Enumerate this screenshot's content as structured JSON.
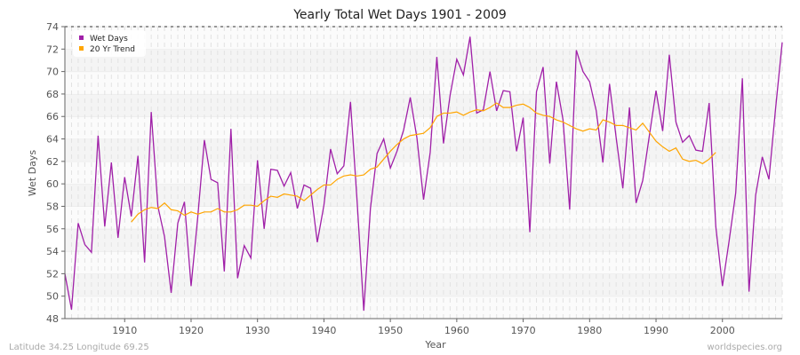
{
  "chart_data": {
    "type": "line",
    "title": "Yearly Total Wet Days 1901 - 2009",
    "xlabel": "Year",
    "ylabel": "Wet Days",
    "xlim": [
      1901,
      2009
    ],
    "ylim": [
      48,
      74
    ],
    "xticks": [
      1910,
      1920,
      1930,
      1940,
      1950,
      1960,
      1970,
      1980,
      1990,
      2000
    ],
    "yticks": [
      48,
      50,
      52,
      54,
      56,
      58,
      60,
      62,
      64,
      66,
      68,
      70,
      72,
      74
    ],
    "grid": true,
    "legend_placement": "top-left",
    "series": [
      {
        "name": "Wet Days",
        "color": "#a020a8",
        "x_start": 1901,
        "values": [
          52.0,
          48.8,
          56.5,
          54.6,
          53.9,
          64.3,
          56.2,
          61.9,
          55.2,
          60.6,
          57.1,
          62.5,
          53.0,
          66.4,
          58.0,
          55.3,
          50.3,
          56.5,
          58.4,
          50.9,
          57.0,
          63.9,
          60.4,
          60.1,
          52.2,
          64.9,
          51.6,
          54.5,
          53.4,
          62.1,
          56.0,
          61.3,
          61.2,
          59.8,
          61.0,
          57.8,
          59.9,
          59.6,
          54.8,
          58.1,
          63.1,
          60.9,
          61.6,
          67.3,
          58.4,
          48.7,
          57.8,
          62.7,
          64.0,
          61.4,
          62.9,
          64.8,
          67.7,
          64.1,
          58.6,
          62.8,
          71.3,
          63.6,
          67.9,
          71.1,
          69.7,
          73.1,
          66.3,
          66.6,
          70.0,
          66.5,
          68.3,
          68.2,
          62.9,
          65.9,
          55.7,
          68.2,
          70.4,
          61.8,
          69.1,
          65.7,
          57.7,
          71.9,
          70.0,
          69.1,
          66.5,
          61.9,
          68.9,
          64.1,
          59.6,
          66.8,
          58.3,
          60.3,
          64.3,
          68.3,
          64.7,
          71.5,
          65.5,
          63.7,
          64.3,
          63.0,
          62.9,
          67.2,
          56.2,
          50.9,
          54.9,
          59.2,
          69.4,
          50.4,
          59.0,
          62.4,
          60.4,
          66.7,
          72.6
        ]
      },
      {
        "name": "20 Yr Trend",
        "color": "#ffa500",
        "x_start": 1911,
        "values": [
          56.6,
          57.3,
          57.7,
          57.9,
          57.8,
          58.3,
          57.7,
          57.6,
          57.2,
          57.5,
          57.3,
          57.5,
          57.5,
          57.8,
          57.5,
          57.5,
          57.7,
          58.1,
          58.1,
          58.0,
          58.5,
          58.9,
          58.8,
          59.1,
          59.0,
          58.9,
          58.5,
          59.0,
          59.5,
          59.9,
          59.9,
          60.4,
          60.7,
          60.8,
          60.7,
          60.8,
          61.3,
          61.5,
          62.2,
          62.9,
          63.5,
          64.0,
          64.3,
          64.4,
          64.5,
          65.0,
          66.0,
          66.3,
          66.3,
          66.4,
          66.1,
          66.4,
          66.6,
          66.5,
          66.8,
          67.2,
          66.8,
          66.8,
          67.0,
          67.1,
          66.8,
          66.3,
          66.1,
          66.0,
          65.7,
          65.5,
          65.2,
          64.9,
          64.7,
          64.9,
          64.8,
          65.7,
          65.5,
          65.2,
          65.2,
          65.0,
          64.8,
          65.4,
          64.6,
          63.8,
          63.3,
          62.9,
          63.2,
          62.2,
          62.0,
          62.1,
          61.8,
          62.2,
          62.8
        ]
      }
    ]
  },
  "footer": {
    "location": "Latitude 34.25 Longitude 69.25",
    "source": "worldspecies.org"
  }
}
